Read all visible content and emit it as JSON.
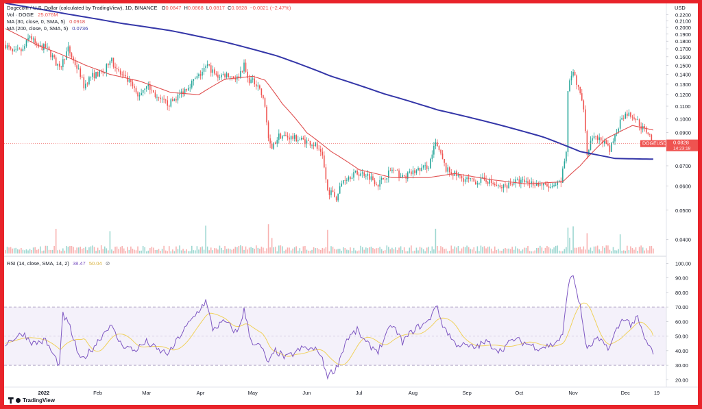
{
  "legend": {
    "title_pair": "Dogecoin / U.S. Dollar (calculated by TradingView), 1D, BINANCE",
    "ohlc": [
      {
        "label": "O",
        "value": "0.0847"
      },
      {
        "label": "H",
        "value": "0.0868"
      },
      {
        "label": "L",
        "value": "0.0817"
      },
      {
        "label": "C",
        "value": "0.0828"
      },
      {
        "label": "",
        "value": "−0.0021 (−2.47%)"
      }
    ],
    "vol_label": "Vol · DOGE",
    "vol_value": "25.076M",
    "ma30_label": "MA (30, close, 0, SMA, 5)",
    "ma30_value": "0.0918",
    "ma200_label": "MA (200, close, 0, SMA, 5)",
    "ma200_value": "0.0736"
  },
  "rsi_legend": {
    "label": "RSI (14, close, SMA, 14, 2)",
    "value1": "38.47",
    "value2": "50.04"
  },
  "price_axis": {
    "currency": "USD",
    "current_symbol": "DOGEUSD",
    "current_price": "0.0828",
    "countdown": "14:23:18"
  },
  "brand": "TradingView",
  "colors": {
    "up": "#26a69a",
    "down": "#ef5350",
    "ma30": "#e05050",
    "ma200": "#3436a8",
    "rsi": "#7e57c2",
    "rsi_ma": "#f0d15b",
    "rsi_band": "#ede7f6",
    "frame": "#e8232a"
  },
  "chart_data": [
    {
      "type": "candlestick",
      "title": "Dogecoin / U.S. Dollar, 1D, BINANCE",
      "ylabel": "USD",
      "scale": "log",
      "ylim": [
        0.036,
        0.23
      ],
      "yticks": [
        0.04,
        0.05,
        0.06,
        0.07,
        0.08,
        0.09,
        0.1,
        0.11,
        0.12,
        0.13,
        0.14,
        0.15,
        0.16,
        0.17,
        0.18,
        0.19,
        0.2,
        0.21,
        0.22
      ],
      "ytick_labels": [
        "0.0400",
        "0.0500",
        "0.0600",
        "0.0700",
        "0.0800",
        "0.0900",
        "0.1000",
        "0.1100",
        "0.1200",
        "0.1300",
        "0.1400",
        "0.1500",
        "0.1600",
        "0.1700",
        "0.1800",
        "0.1900",
        "0.2000",
        "0.2100",
        "0.2200"
      ],
      "x_labels": [
        "2022",
        "Feb",
        "Mar",
        "Apr",
        "May",
        "Jun",
        "Jul",
        "Aug",
        "Sep",
        "Oct",
        "Nov",
        "Dec",
        "19"
      ],
      "x_label_dates": [
        "2022-01-01",
        "2022-02-01",
        "2022-03-01",
        "2022-04-01",
        "2022-05-01",
        "2022-06-01",
        "2022-07-01",
        "2022-08-01",
        "2022-09-01",
        "2022-10-01",
        "2022-11-01",
        "2022-12-01",
        "2022-12-19"
      ],
      "x_start": "2021-12-10",
      "x_end": "2022-12-19",
      "close_anchors": [
        [
          "2021-12-10",
          0.175
        ],
        [
          "2021-12-14",
          0.165
        ],
        [
          "2021-12-20",
          0.168
        ],
        [
          "2021-12-24",
          0.188
        ],
        [
          "2021-12-28",
          0.172
        ],
        [
          "2022-01-02",
          0.172
        ],
        [
          "2022-01-06",
          0.16
        ],
        [
          "2022-01-10",
          0.145
        ],
        [
          "2022-01-15",
          0.17
        ],
        [
          "2022-01-18",
          0.155
        ],
        [
          "2022-01-22",
          0.14
        ],
        [
          "2022-01-24",
          0.128
        ],
        [
          "2022-01-28",
          0.138
        ],
        [
          "2022-02-05",
          0.143
        ],
        [
          "2022-02-08",
          0.158
        ],
        [
          "2022-02-14",
          0.14
        ],
        [
          "2022-02-20",
          0.13
        ],
        [
          "2022-02-24",
          0.118
        ],
        [
          "2022-03-01",
          0.13
        ],
        [
          "2022-03-08",
          0.115
        ],
        [
          "2022-03-14",
          0.112
        ],
        [
          "2022-03-20",
          0.12
        ],
        [
          "2022-03-26",
          0.13
        ],
        [
          "2022-03-31",
          0.138
        ],
        [
          "2022-04-05",
          0.15
        ],
        [
          "2022-04-10",
          0.138
        ],
        [
          "2022-04-16",
          0.14
        ],
        [
          "2022-04-22",
          0.136
        ],
        [
          "2022-04-26",
          0.15
        ],
        [
          "2022-04-28",
          0.135
        ],
        [
          "2022-05-04",
          0.13
        ],
        [
          "2022-05-08",
          0.11
        ],
        [
          "2022-05-10",
          0.086
        ],
        [
          "2022-05-12",
          0.08
        ],
        [
          "2022-05-16",
          0.088
        ],
        [
          "2022-05-22",
          0.087
        ],
        [
          "2022-05-30",
          0.085
        ],
        [
          "2022-06-06",
          0.082
        ],
        [
          "2022-06-10",
          0.074
        ],
        [
          "2022-06-13",
          0.058
        ],
        [
          "2022-06-18",
          0.055
        ],
        [
          "2022-06-22",
          0.063
        ],
        [
          "2022-06-28",
          0.066
        ],
        [
          "2022-07-05",
          0.066
        ],
        [
          "2022-07-12",
          0.061
        ],
        [
          "2022-07-20",
          0.068
        ],
        [
          "2022-07-26",
          0.064
        ],
        [
          "2022-08-02",
          0.067
        ],
        [
          "2022-08-10",
          0.07
        ],
        [
          "2022-08-14",
          0.083
        ],
        [
          "2022-08-16",
          0.078
        ],
        [
          "2022-08-20",
          0.068
        ],
        [
          "2022-08-28",
          0.064
        ],
        [
          "2022-09-05",
          0.062
        ],
        [
          "2022-09-12",
          0.063
        ],
        [
          "2022-09-20",
          0.059
        ],
        [
          "2022-09-28",
          0.062
        ],
        [
          "2022-10-05",
          0.062
        ],
        [
          "2022-10-12",
          0.061
        ],
        [
          "2022-10-20",
          0.059
        ],
        [
          "2022-10-25",
          0.062
        ],
        [
          "2022-10-28",
          0.078
        ],
        [
          "2022-10-29",
          0.125
        ],
        [
          "2022-11-01",
          0.143
        ],
        [
          "2022-11-04",
          0.125
        ],
        [
          "2022-11-07",
          0.11
        ],
        [
          "2022-11-09",
          0.076
        ],
        [
          "2022-11-12",
          0.086
        ],
        [
          "2022-11-18",
          0.085
        ],
        [
          "2022-11-22",
          0.078
        ],
        [
          "2022-11-25",
          0.088
        ],
        [
          "2022-11-29",
          0.102
        ],
        [
          "2022-12-02",
          0.104
        ],
        [
          "2022-12-06",
          0.102
        ],
        [
          "2022-12-10",
          0.094
        ],
        [
          "2022-12-14",
          0.09
        ],
        [
          "2022-12-17",
          0.0828
        ]
      ],
      "ma30_anchors": [
        [
          "2021-12-10",
          0.198
        ],
        [
          "2021-12-28",
          0.175
        ],
        [
          "2022-01-12",
          0.162
        ],
        [
          "2022-01-25",
          0.15
        ],
        [
          "2022-02-08",
          0.14
        ],
        [
          "2022-02-25",
          0.133
        ],
        [
          "2022-03-15",
          0.122
        ],
        [
          "2022-03-31",
          0.12
        ],
        [
          "2022-04-15",
          0.135
        ],
        [
          "2022-05-01",
          0.138
        ],
        [
          "2022-05-08",
          0.134
        ],
        [
          "2022-05-18",
          0.112
        ],
        [
          "2022-06-01",
          0.09
        ],
        [
          "2022-06-15",
          0.078
        ],
        [
          "2022-07-01",
          0.068
        ],
        [
          "2022-07-20",
          0.064
        ],
        [
          "2022-08-10",
          0.064
        ],
        [
          "2022-08-25",
          0.066
        ],
        [
          "2022-09-15",
          0.063
        ],
        [
          "2022-10-05",
          0.061
        ],
        [
          "2022-10-26",
          0.062
        ],
        [
          "2022-11-05",
          0.07
        ],
        [
          "2022-11-20",
          0.086
        ],
        [
          "2022-12-05",
          0.095
        ],
        [
          "2022-12-17",
          0.0918
        ]
      ],
      "ma200_anchors": [
        [
          "2021-12-10",
          0.24
        ],
        [
          "2022-01-15",
          0.221
        ],
        [
          "2022-02-15",
          0.206
        ],
        [
          "2022-03-15",
          0.195
        ],
        [
          "2022-04-15",
          0.179
        ],
        [
          "2022-05-15",
          0.161
        ],
        [
          "2022-06-15",
          0.138
        ],
        [
          "2022-07-15",
          0.121
        ],
        [
          "2022-08-15",
          0.107
        ],
        [
          "2022-09-15",
          0.097
        ],
        [
          "2022-10-15",
          0.087
        ],
        [
          "2022-11-05",
          0.078
        ],
        [
          "2022-11-25",
          0.074
        ],
        [
          "2022-12-17",
          0.0736
        ]
      ],
      "current_price": 0.0828
    },
    {
      "type": "bar",
      "title": "Vol · DOGE",
      "last_value": "25.076M",
      "spike_dates": [
        "2022-01-08",
        "2022-02-08",
        "2022-04-04",
        "2022-05-10",
        "2022-05-12",
        "2022-06-13",
        "2022-08-14",
        "2022-10-29",
        "2022-10-30",
        "2022-11-01",
        "2022-11-09",
        "2022-11-28"
      ]
    },
    {
      "type": "line",
      "title": "RSI (14, close, SMA, 14, 2)",
      "ylim": [
        15,
        103
      ],
      "yticks": [
        20,
        30,
        40,
        50,
        60,
        70,
        80,
        90,
        100
      ],
      "ytick_labels": [
        "20.00",
        "30.00",
        "40.00",
        "50.00",
        "60.00",
        "70.00",
        "80.00",
        "90.00",
        "100.00"
      ],
      "band": [
        30,
        70
      ],
      "last_rsi": 38.47,
      "last_rsi_ma": 50.04,
      "rsi_anchors": [
        [
          "2021-12-10",
          45
        ],
        [
          "2021-12-20",
          52
        ],
        [
          "2021-12-26",
          45
        ],
        [
          "2022-01-02",
          47
        ],
        [
          "2022-01-06",
          38
        ],
        [
          "2022-01-10",
          30
        ],
        [
          "2022-01-12",
          65
        ],
        [
          "2022-01-16",
          56
        ],
        [
          "2022-01-22",
          33
        ],
        [
          "2022-01-28",
          40
        ],
        [
          "2022-02-08",
          58
        ],
        [
          "2022-02-14",
          45
        ],
        [
          "2022-02-22",
          40
        ],
        [
          "2022-03-01",
          46
        ],
        [
          "2022-03-08",
          40
        ],
        [
          "2022-03-14",
          38
        ],
        [
          "2022-03-20",
          50
        ],
        [
          "2022-03-28",
          63
        ],
        [
          "2022-04-04",
          74
        ],
        [
          "2022-04-08",
          55
        ],
        [
          "2022-04-15",
          60
        ],
        [
          "2022-04-22",
          52
        ],
        [
          "2022-04-26",
          68
        ],
        [
          "2022-04-30",
          47
        ],
        [
          "2022-05-06",
          42
        ],
        [
          "2022-05-10",
          31
        ],
        [
          "2022-05-14",
          40
        ],
        [
          "2022-05-20",
          35
        ],
        [
          "2022-05-30",
          42
        ],
        [
          "2022-06-08",
          40
        ],
        [
          "2022-06-13",
          23
        ],
        [
          "2022-06-18",
          28
        ],
        [
          "2022-06-24",
          48
        ],
        [
          "2022-06-30",
          54
        ],
        [
          "2022-07-05",
          45
        ],
        [
          "2022-07-12",
          40
        ],
        [
          "2022-07-20",
          58
        ],
        [
          "2022-07-26",
          46
        ],
        [
          "2022-08-02",
          55
        ],
        [
          "2022-08-10",
          60
        ],
        [
          "2022-08-14",
          72
        ],
        [
          "2022-08-18",
          58
        ],
        [
          "2022-08-25",
          45
        ],
        [
          "2022-09-05",
          42
        ],
        [
          "2022-09-12",
          46
        ],
        [
          "2022-09-20",
          40
        ],
        [
          "2022-09-28",
          48
        ],
        [
          "2022-10-05",
          45
        ],
        [
          "2022-10-12",
          42
        ],
        [
          "2022-10-20",
          44
        ],
        [
          "2022-10-26",
          50
        ],
        [
          "2022-10-29",
          85
        ],
        [
          "2022-11-01",
          92
        ],
        [
          "2022-11-05",
          70
        ],
        [
          "2022-11-09",
          40
        ],
        [
          "2022-11-14",
          48
        ],
        [
          "2022-11-22",
          42
        ],
        [
          "2022-11-25",
          52
        ],
        [
          "2022-11-30",
          63
        ],
        [
          "2022-12-04",
          58
        ],
        [
          "2022-12-08",
          62
        ],
        [
          "2022-12-12",
          48
        ],
        [
          "2022-12-17",
          38.47
        ]
      ]
    }
  ]
}
